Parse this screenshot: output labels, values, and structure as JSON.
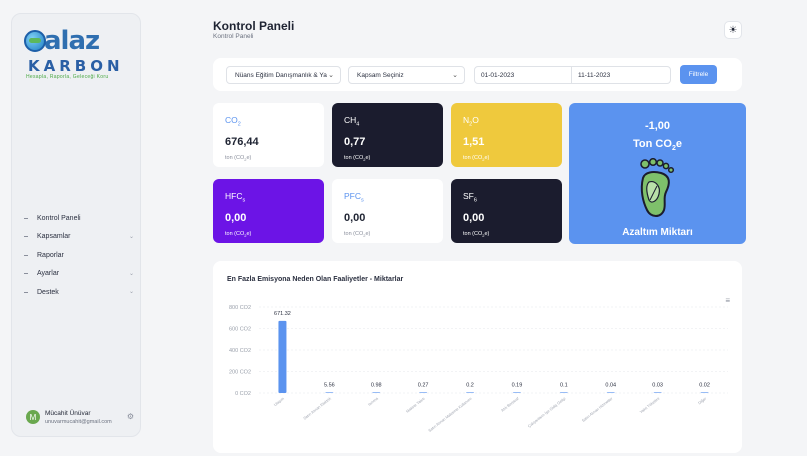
{
  "brand": {
    "name_top": "alaz",
    "name_bottom": "KARBON",
    "slogan": "Hesapla, Raporla, Geleceği Koru"
  },
  "sidebar": {
    "items": [
      {
        "label": "Kontrol Paneli",
        "has_submenu": false
      },
      {
        "label": "Kapsamlar",
        "has_submenu": true
      },
      {
        "label": "Raporlar",
        "has_submenu": false
      },
      {
        "label": "Ayarlar",
        "has_submenu": true
      },
      {
        "label": "Destek",
        "has_submenu": true
      }
    ],
    "user": {
      "initial": "M",
      "name": "Mücahit Ünüvar",
      "email": "unuvarmucahit@gmail.com"
    }
  },
  "header": {
    "title": "Kontrol Paneli",
    "breadcrumb": "Kontrol Paneli"
  },
  "filters": {
    "company": "Nüans Eğitim Danışmanlık & Ya",
    "scope_placeholder": "Kapsam Seçiniz",
    "date_from": "01-01-2023",
    "date_to": "11-11-2023",
    "button": "Filtrele"
  },
  "cards": {
    "co2": {
      "label": "CO",
      "sub": "2",
      "value": "676,44",
      "unit": "ton (CO",
      "unit_sub": "2",
      "unit_end": "e)"
    },
    "ch4": {
      "label": "CH",
      "sub": "4",
      "value": "0,77",
      "unit": "ton (CO",
      "unit_sub": "2",
      "unit_end": "e)"
    },
    "n2o": {
      "label": "N",
      "sub": "2",
      "label2": "O",
      "value": "1,51",
      "unit": "ton (CO",
      "unit_sub": "2",
      "unit_end": "e)"
    },
    "hfc": {
      "label": "HFC",
      "sub": "s",
      "value": "0,00",
      "unit": "ton (CO",
      "unit_sub": "2",
      "unit_end": "e)"
    },
    "pfc": {
      "label": "PFC",
      "sub": "s",
      "value": "0,00",
      "unit": "ton (CO",
      "unit_sub": "2",
      "unit_end": "e)"
    },
    "sf6": {
      "label": "SF",
      "sub": "6",
      "value": "0,00",
      "unit": "ton (CO",
      "unit_sub": "2",
      "unit_end": "e)"
    },
    "reduction": {
      "value": "-1,00",
      "unit": "Ton CO",
      "unit_sub": "2",
      "unit_end": "e",
      "label": "Azaltım Miktarı"
    }
  },
  "colors": {
    "accent": "#5b93ef",
    "dark": "#1b1c2e",
    "yellow": "#efc93d",
    "purple": "#6c14e6"
  },
  "chart_data": {
    "type": "bar",
    "title": "En Fazla Emisyona Neden Olan Faaliyetler - Miktarlar",
    "categories": [
      "Ulaşım",
      "Satın Alınan Elektrik",
      "Isınma",
      "Makine Yakıtı",
      "Satın Alınan Malzeme Kullanımı",
      "Atık Bertaraf",
      "Çalışanların İşe Gidiş Gelişi",
      "Satın Alınan Hizmetler",
      "Yakıt Tüketimi",
      "Diğer"
    ],
    "values": [
      671.32,
      5.56,
      0.98,
      0.27,
      0.2,
      0.19,
      0.1,
      0.04,
      0.03,
      0.02
    ],
    "value_labels": [
      "671.32",
      "5.56",
      "0.98",
      "0.27",
      "0.2",
      "0.19",
      "0.1",
      "0.04",
      "0.03",
      "0.02"
    ],
    "yticks": [
      "0 CO2",
      "200 CO2",
      "400 CO2",
      "600 CO2",
      "800 CO2"
    ],
    "ylim": [
      0,
      800
    ],
    "grid": true
  }
}
